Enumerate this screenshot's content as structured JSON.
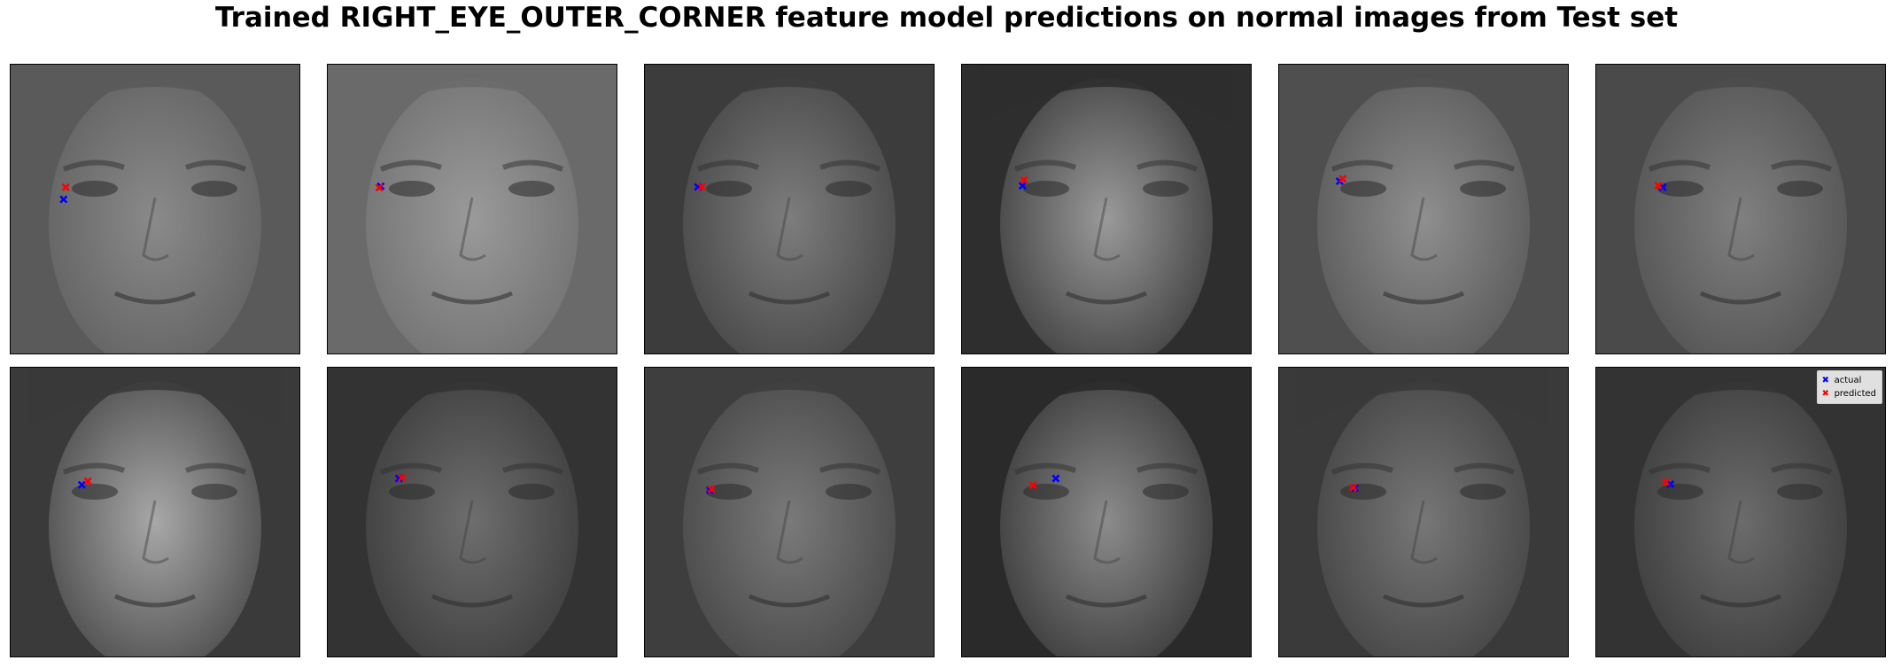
{
  "figure": {
    "title": "Trained RIGHT_EYE_OUTER_CORNER feature model predictions on normal images from Test set"
  },
  "colors": {
    "actual": "#0000ff",
    "predicted": "#ff0000"
  },
  "legend": {
    "location": "upper right",
    "actual_label": "actual",
    "predicted_label": "predicted"
  },
  "chart_data": {
    "type": "scatter",
    "title": "Trained RIGHT_EYE_OUTER_CORNER feature model predictions on normal images from Test set",
    "grid": false,
    "axes_visible": false,
    "image_size": [
      96,
      96
    ],
    "xlim": [
      0,
      96
    ],
    "ylim": [
      96,
      0
    ],
    "series": [
      {
        "name": "actual",
        "marker": "x",
        "color": "#0000ff"
      },
      {
        "name": "predicted",
        "marker": "x",
        "color": "#ff0000"
      }
    ],
    "panels": [
      {
        "index": 1,
        "actual": [
          17.5,
          44.5
        ],
        "predicted": [
          18.2,
          40.5
        ]
      },
      {
        "index": 2,
        "actual": [
          17.5,
          40.2
        ],
        "predicted": [
          17.0,
          40.6
        ]
      },
      {
        "index": 3,
        "actual": [
          17.5,
          40.4
        ],
        "predicted": [
          18.8,
          40.4
        ]
      },
      {
        "index": 4,
        "actual": [
          20.0,
          40.0
        ],
        "predicted": [
          20.5,
          38.1
        ]
      },
      {
        "index": 5,
        "actual": [
          20.0,
          38.5
        ],
        "predicted": [
          21.0,
          37.7
        ]
      },
      {
        "index": 6,
        "actual": [
          22.0,
          40.5
        ],
        "predicted": [
          20.5,
          40.0
        ]
      },
      {
        "index": 7,
        "actual": [
          23.5,
          38.7
        ],
        "predicted": [
          25.5,
          37.5
        ]
      },
      {
        "index": 8,
        "actual": [
          23.5,
          36.6
        ],
        "predicted": [
          24.5,
          36.3
        ]
      },
      {
        "index": 9,
        "actual": [
          21.5,
          40.5
        ],
        "predicted": [
          22.0,
          40.2
        ]
      },
      {
        "index": 10,
        "actual": [
          31.0,
          36.6
        ],
        "predicted": [
          23.5,
          38.8
        ]
      },
      {
        "index": 11,
        "actual": [
          25.0,
          39.8
        ],
        "predicted": [
          24.5,
          39.6
        ]
      },
      {
        "index": 12,
        "actual": [
          24.5,
          38.5
        ],
        "predicted": [
          23.0,
          37.8
        ]
      }
    ]
  }
}
